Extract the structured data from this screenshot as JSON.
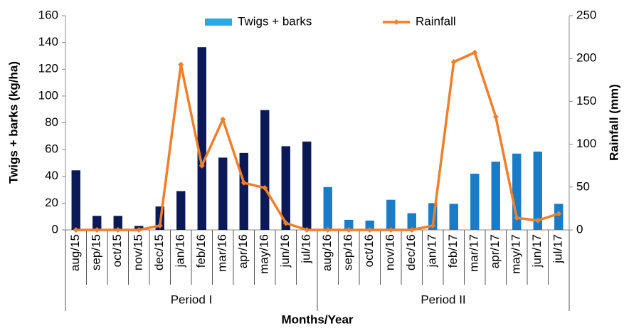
{
  "chart_data": {
    "type": "bar_line",
    "categories": [
      "aug/15",
      "sep/15",
      "oct/15",
      "nov/15",
      "dec/15",
      "jan/16",
      "feb/16",
      "mar/16",
      "apr/16",
      "may/16",
      "jun/16",
      "jul/16",
      "aug/16",
      "sep/16",
      "oct/16",
      "nov/16",
      "dec/16",
      "jan/17",
      "feb/17",
      "mar/17",
      "apr/17",
      "may/17",
      "jun/17",
      "jul/17"
    ],
    "groups": [
      {
        "label": "Period I",
        "size": 12
      },
      {
        "label": "Period II",
        "size": 12
      }
    ],
    "series": [
      {
        "name": "Twigs + barks",
        "type": "bar",
        "color": "#29a8e0",
        "colors": [
          "#0b1a57",
          "#0b1a57",
          "#0b1a57",
          "#0b1a57",
          "#0b1a57",
          "#0b1a57",
          "#0b1a57",
          "#0b1a57",
          "#0b1a57",
          "#0b1a57",
          "#0b1a57",
          "#0b1a57",
          "#1a7bc6",
          "#1a7bc6",
          "#1a7bc6",
          "#1a7bc6",
          "#1a7bc6",
          "#1a7bc6",
          "#1a7bc6",
          "#1a7bc6",
          "#1a7bc6",
          "#1a7bc6",
          "#1a7bc6",
          "#1a7bc6"
        ],
        "values": [
          44.5,
          10.5,
          10.5,
          3,
          17.5,
          29,
          136.5,
          54,
          57.5,
          89.5,
          62.5,
          66,
          32,
          7.5,
          7,
          22.5,
          12.5,
          20,
          19.5,
          42,
          51,
          57,
          58.5,
          19.5
        ]
      },
      {
        "name": "Rainfall",
        "type": "line",
        "axis": "y2",
        "color": "#f07f2a",
        "values": [
          0,
          0,
          0,
          0,
          5,
          193,
          75,
          129,
          55,
          49,
          8,
          0,
          0,
          0,
          0,
          0,
          0,
          5,
          196,
          207,
          132,
          14,
          11,
          19
        ]
      }
    ],
    "ylabel": "Twigs + barks (kg/ha)",
    "y2label": "Rainfall (mm)",
    "xlabel": "Months/Year",
    "ylim": [
      0,
      160
    ],
    "yticks": [
      0,
      20,
      40,
      60,
      80,
      100,
      120,
      140,
      160
    ],
    "y2lim": [
      0,
      250
    ],
    "y2ticks": [
      0,
      50,
      100,
      150,
      200,
      250
    ],
    "grid": false,
    "legend": "top"
  }
}
